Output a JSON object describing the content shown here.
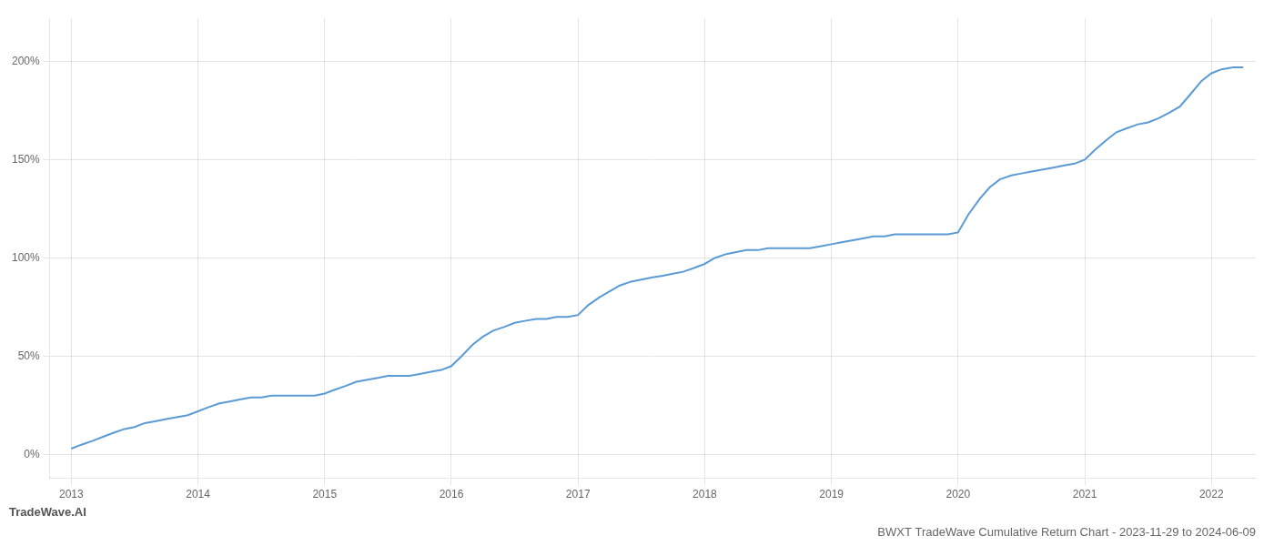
{
  "chart_data": {
    "type": "line",
    "title": "BWXT TradeWave Cumulative Return Chart - 2023-11-29 to 2024-06-09",
    "annotations": [
      "TradeWave.AI"
    ],
    "color": "#5b9bd5",
    "grid": true,
    "xlim": [
      2012.83,
      2022.35
    ],
    "xticks": [
      2013,
      2014,
      2015,
      2016,
      2017,
      2018,
      2019,
      2020,
      2021,
      2022
    ],
    "ylim": [
      -0.12,
      2.22
    ],
    "yticks": [
      {
        "value": 0.0,
        "label": "0%"
      },
      {
        "value": 0.5,
        "label": "50%"
      },
      {
        "value": 1.0,
        "label": "100%"
      },
      {
        "value": 1.5,
        "label": "150%"
      },
      {
        "value": 2.0,
        "label": "200%"
      }
    ],
    "x": [
      2013.0,
      2013.08,
      2013.17,
      2013.25,
      2013.33,
      2013.42,
      2013.5,
      2013.58,
      2013.67,
      2013.75,
      2013.83,
      2013.92,
      2014.0,
      2014.08,
      2014.17,
      2014.25,
      2014.33,
      2014.42,
      2014.5,
      2014.58,
      2014.67,
      2014.75,
      2014.83,
      2014.92,
      2015.0,
      2015.08,
      2015.17,
      2015.25,
      2015.33,
      2015.42,
      2015.5,
      2015.58,
      2015.67,
      2015.75,
      2015.83,
      2015.92,
      2016.0,
      2016.08,
      2016.17,
      2016.25,
      2016.33,
      2016.42,
      2016.5,
      2016.58,
      2016.67,
      2016.75,
      2016.83,
      2016.92,
      2017.0,
      2017.08,
      2017.17,
      2017.25,
      2017.33,
      2017.42,
      2017.5,
      2017.58,
      2017.67,
      2017.75,
      2017.83,
      2017.92,
      2018.0,
      2018.08,
      2018.17,
      2018.25,
      2018.33,
      2018.42,
      2018.5,
      2018.58,
      2018.67,
      2018.75,
      2018.83,
      2018.92,
      2019.0,
      2019.08,
      2019.17,
      2019.25,
      2019.33,
      2019.42,
      2019.5,
      2019.58,
      2019.67,
      2019.75,
      2019.83,
      2019.92,
      2020.0,
      2020.08,
      2020.17,
      2020.25,
      2020.33,
      2020.42,
      2020.5,
      2020.58,
      2020.67,
      2020.75,
      2020.83,
      2020.92,
      2021.0,
      2021.08,
      2021.17,
      2021.25,
      2021.33,
      2021.42,
      2021.5,
      2021.58,
      2021.67,
      2021.75,
      2021.83,
      2021.92,
      2022.0,
      2022.08,
      2022.17,
      2022.25
    ],
    "values": [
      0.03,
      0.05,
      0.07,
      0.09,
      0.11,
      0.13,
      0.14,
      0.16,
      0.17,
      0.18,
      0.19,
      0.2,
      0.22,
      0.24,
      0.26,
      0.27,
      0.28,
      0.29,
      0.29,
      0.3,
      0.3,
      0.3,
      0.3,
      0.3,
      0.31,
      0.33,
      0.35,
      0.37,
      0.38,
      0.39,
      0.4,
      0.4,
      0.4,
      0.41,
      0.42,
      0.43,
      0.45,
      0.5,
      0.56,
      0.6,
      0.63,
      0.65,
      0.67,
      0.68,
      0.69,
      0.69,
      0.7,
      0.7,
      0.71,
      0.76,
      0.8,
      0.83,
      0.86,
      0.88,
      0.89,
      0.9,
      0.91,
      0.92,
      0.93,
      0.95,
      0.97,
      1.0,
      1.02,
      1.03,
      1.04,
      1.04,
      1.05,
      1.05,
      1.05,
      1.05,
      1.05,
      1.06,
      1.07,
      1.08,
      1.09,
      1.1,
      1.11,
      1.11,
      1.12,
      1.12,
      1.12,
      1.12,
      1.12,
      1.12,
      1.13,
      1.22,
      1.3,
      1.36,
      1.4,
      1.42,
      1.43,
      1.44,
      1.45,
      1.46,
      1.47,
      1.48,
      1.5,
      1.55,
      1.6,
      1.64,
      1.66,
      1.68,
      1.69,
      1.71,
      1.74,
      1.77,
      1.83,
      1.9,
      1.94,
      1.96,
      1.97,
      1.97
    ]
  }
}
